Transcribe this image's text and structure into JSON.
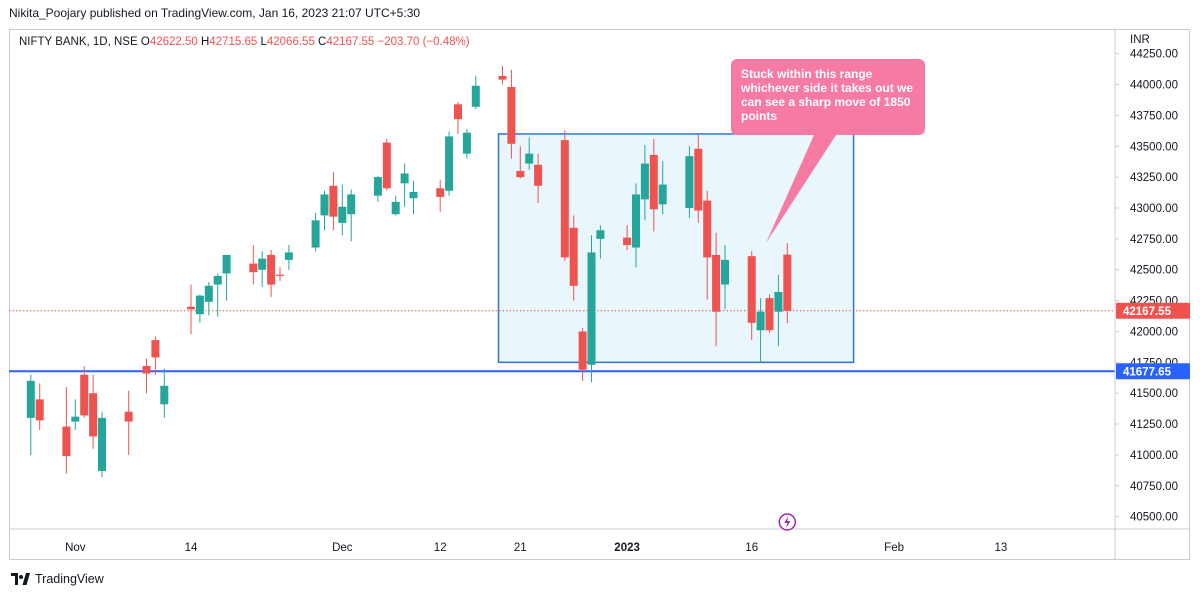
{
  "header": {
    "published": "Nikita_Poojary published on TradingView.com, Jan 16, 2023 21:07 UTC+5:30"
  },
  "legend": {
    "symbol": "NIFTY BANK, 1D, NSE",
    "o_label": "O",
    "o_value": "42622.50",
    "h_label": "H",
    "h_value": "42715.65",
    "l_label": "L",
    "l_value": "42066.55",
    "c_label": "C",
    "c_value": "42167.55",
    "change": "−203.70 (−0.48%)"
  },
  "annotation": {
    "text": "Stuck within this range whichever side it takes out we can see a sharp move of 1850 points"
  },
  "footer": {
    "brand": "TradingView"
  },
  "colors": {
    "up": "#26a69a",
    "down": "#ef5350",
    "support": "#2962ff",
    "box_fill": "#e9f6fb",
    "box_border": "#2f73d9",
    "callout": "#f77aa3"
  },
  "chart_data": {
    "type": "candlestick",
    "currency_label": "INR",
    "y_ticks": [
      "44250.00",
      "44000.00",
      "43750.00",
      "43500.00",
      "43250.00",
      "43000.00",
      "42750.00",
      "42500.00",
      "42250.00",
      "42000.00",
      "41750.00",
      "41500.00",
      "41250.00",
      "41000.00",
      "40750.00",
      "40500.00"
    ],
    "y_range": [
      40400,
      44450
    ],
    "x_ticks": [
      {
        "label": "Nov",
        "date": "2022-11-01"
      },
      {
        "label": "14",
        "date": "2022-11-14"
      },
      {
        "label": "Dec",
        "date": "2022-12-01"
      },
      {
        "label": "12",
        "date": "2022-12-12"
      },
      {
        "label": "21",
        "date": "2022-12-21"
      },
      {
        "label": "2023",
        "date": "2023-01-02"
      },
      {
        "label": "16",
        "date": "2023-01-16"
      },
      {
        "label": "Feb",
        "date": "2023-02-01"
      },
      {
        "label": "13",
        "date": "2023-02-13"
      }
    ],
    "current_price_label": "42167.55",
    "support_label": "41677.65",
    "support_level": 41677.65,
    "range_box": {
      "start": "2022-12-19",
      "end": "2023-01-27",
      "high": 43600,
      "low": 41750
    },
    "candles": [
      {
        "d": "2022-10-27",
        "o": 41300,
        "h": 41650,
        "l": 41000,
        "c": 41600
      },
      {
        "d": "2022-10-28",
        "o": 41450,
        "h": 41580,
        "l": 41200,
        "c": 41280
      },
      {
        "d": "2022-10-31",
        "o": 41230,
        "h": 41550,
        "l": 40850,
        "c": 40990
      },
      {
        "d": "2022-11-01",
        "o": 41270,
        "h": 41450,
        "l": 41200,
        "c": 41310
      },
      {
        "d": "2022-11-02",
        "o": 41650,
        "h": 41720,
        "l": 41300,
        "c": 41320
      },
      {
        "d": "2022-11-03",
        "o": 41500,
        "h": 41650,
        "l": 41050,
        "c": 41150
      },
      {
        "d": "2022-11-04",
        "o": 40870,
        "h": 41350,
        "l": 40820,
        "c": 41300
      },
      {
        "d": "2022-11-07",
        "o": 41350,
        "h": 41520,
        "l": 41000,
        "c": 41270
      },
      {
        "d": "2022-11-09",
        "o": 41720,
        "h": 41780,
        "l": 41500,
        "c": 41660
      },
      {
        "d": "2022-11-10",
        "o": 41930,
        "h": 41960,
        "l": 41650,
        "c": 41790
      },
      {
        "d": "2022-11-11",
        "o": 41410,
        "h": 41700,
        "l": 41300,
        "c": 41560
      },
      {
        "d": "2022-11-14",
        "o": 42200,
        "h": 42380,
        "l": 41980,
        "c": 42180
      },
      {
        "d": "2022-11-15",
        "o": 42140,
        "h": 42300,
        "l": 42070,
        "c": 42290
      },
      {
        "d": "2022-11-16",
        "o": 42240,
        "h": 42400,
        "l": 42130,
        "c": 42370
      },
      {
        "d": "2022-11-17",
        "o": 42380,
        "h": 42470,
        "l": 42120,
        "c": 42450
      },
      {
        "d": "2022-11-18",
        "o": 42470,
        "h": 42600,
        "l": 42250,
        "c": 42620
      },
      {
        "d": "2022-11-21",
        "o": 42550,
        "h": 42700,
        "l": 42380,
        "c": 42480
      },
      {
        "d": "2022-11-22",
        "o": 42500,
        "h": 42650,
        "l": 42360,
        "c": 42590
      },
      {
        "d": "2022-11-23",
        "o": 42620,
        "h": 42660,
        "l": 42280,
        "c": 42380
      },
      {
        "d": "2022-11-24",
        "o": 42460,
        "h": 42520,
        "l": 42410,
        "c": 42450
      },
      {
        "d": "2022-11-25",
        "o": 42580,
        "h": 42700,
        "l": 42500,
        "c": 42640
      },
      {
        "d": "2022-11-28",
        "o": 42680,
        "h": 42960,
        "l": 42650,
        "c": 42900
      },
      {
        "d": "2022-11-29",
        "o": 42940,
        "h": 43140,
        "l": 42820,
        "c": 43110
      },
      {
        "d": "2022-11-30",
        "o": 43180,
        "h": 43290,
        "l": 42820,
        "c": 42930
      },
      {
        "d": "2022-12-01",
        "o": 42880,
        "h": 43190,
        "l": 42780,
        "c": 43010
      },
      {
        "d": "2022-12-02",
        "o": 42950,
        "h": 43150,
        "l": 42730,
        "c": 43110
      },
      {
        "d": "2022-12-05",
        "o": 43100,
        "h": 43260,
        "l": 43050,
        "c": 43250
      },
      {
        "d": "2022-12-06",
        "o": 43530,
        "h": 43560,
        "l": 43140,
        "c": 43160
      },
      {
        "d": "2022-12-07",
        "o": 42950,
        "h": 43100,
        "l": 42940,
        "c": 43050
      },
      {
        "d": "2022-12-08",
        "o": 43200,
        "h": 43360,
        "l": 43010,
        "c": 43280
      },
      {
        "d": "2022-12-09",
        "o": 43080,
        "h": 43220,
        "l": 42950,
        "c": 43130
      },
      {
        "d": "2022-12-12",
        "o": 43160,
        "h": 43230,
        "l": 42970,
        "c": 43090
      },
      {
        "d": "2022-12-13",
        "o": 43140,
        "h": 43620,
        "l": 43100,
        "c": 43580
      },
      {
        "d": "2022-12-14",
        "o": 43840,
        "h": 43860,
        "l": 43600,
        "c": 43720
      },
      {
        "d": "2022-12-15",
        "o": 43440,
        "h": 43640,
        "l": 43400,
        "c": 43610
      },
      {
        "d": "2022-12-16",
        "o": 43820,
        "h": 44070,
        "l": 43800,
        "c": 43990
      },
      {
        "d": "2022-12-19",
        "o": 44070,
        "h": 44150,
        "l": 44000,
        "c": 44040
      },
      {
        "d": "2022-12-20",
        "o": 43980,
        "h": 44120,
        "l": 43400,
        "c": 43520
      },
      {
        "d": "2022-12-21",
        "o": 43300,
        "h": 43500,
        "l": 43240,
        "c": 43250
      },
      {
        "d": "2022-12-22",
        "o": 43360,
        "h": 43570,
        "l": 43310,
        "c": 43440
      },
      {
        "d": "2022-12-23",
        "o": 43350,
        "h": 43440,
        "l": 43040,
        "c": 43180
      },
      {
        "d": "2022-12-26",
        "o": 43550,
        "h": 43630,
        "l": 42570,
        "c": 42600
      },
      {
        "d": "2022-12-27",
        "o": 42840,
        "h": 42940,
        "l": 42250,
        "c": 42370
      },
      {
        "d": "2022-12-28",
        "o": 42000,
        "h": 42030,
        "l": 41600,
        "c": 41690
      },
      {
        "d": "2022-12-29",
        "o": 41730,
        "h": 42780,
        "l": 41590,
        "c": 42640
      },
      {
        "d": "2022-12-30",
        "o": 42750,
        "h": 42860,
        "l": 42590,
        "c": 42820
      },
      {
        "d": "2023-01-02",
        "o": 42760,
        "h": 42860,
        "l": 42660,
        "c": 42700
      },
      {
        "d": "2023-01-03",
        "o": 42680,
        "h": 43200,
        "l": 42520,
        "c": 43110
      },
      {
        "d": "2023-01-04",
        "o": 43070,
        "h": 43510,
        "l": 42900,
        "c": 43360
      },
      {
        "d": "2023-01-05",
        "o": 43430,
        "h": 43560,
        "l": 42810,
        "c": 42990
      },
      {
        "d": "2023-01-06",
        "o": 43030,
        "h": 43380,
        "l": 42950,
        "c": 43190
      },
      {
        "d": "2023-01-09",
        "o": 43000,
        "h": 43500,
        "l": 42920,
        "c": 43420
      },
      {
        "d": "2023-01-10",
        "o": 43480,
        "h": 43600,
        "l": 42880,
        "c": 42980
      },
      {
        "d": "2023-01-11",
        "o": 43060,
        "h": 43140,
        "l": 42260,
        "c": 42600
      },
      {
        "d": "2023-01-12",
        "o": 42620,
        "h": 42800,
        "l": 41880,
        "c": 42160
      },
      {
        "d": "2023-01-13",
        "o": 42380,
        "h": 42700,
        "l": 42180,
        "c": 42580
      },
      {
        "d": "2023-01-16",
        "o": 42610,
        "h": 42650,
        "l": 41930,
        "c": 42070
      },
      {
        "d": "2023-01-17",
        "o": 42010,
        "h": 42270,
        "l": 41750,
        "c": 42160
      },
      {
        "d": "2023-01-18",
        "o": 42270,
        "h": 42300,
        "l": 41990,
        "c": 42010
      },
      {
        "d": "2023-01-19",
        "o": 42160,
        "h": 42460,
        "l": 41880,
        "c": 42320
      },
      {
        "d": "2023-01-20",
        "o": 42622.5,
        "h": 42715.65,
        "l": 42066.55,
        "c": 42167.55
      }
    ]
  }
}
